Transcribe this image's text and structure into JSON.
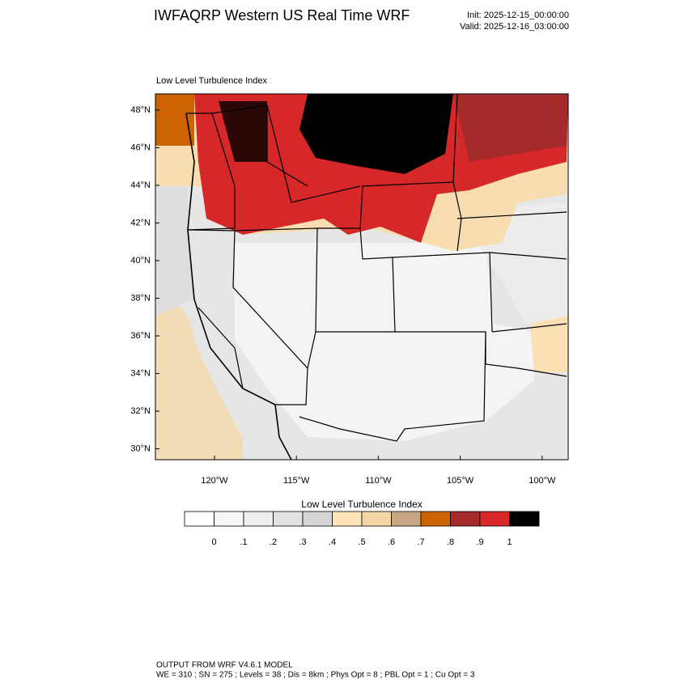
{
  "header": {
    "title": "IWFAQRP Western US Real Time WRF",
    "init": "Init: 2025-12-15_00:00:00",
    "valid": "Valid: 2025-12-16_03:00:00"
  },
  "map": {
    "title": "Low Level Turbulence Index",
    "lat_labels": [
      "48°N",
      "46°N",
      "44°N",
      "42°N",
      "40°N",
      "38°N",
      "36°N",
      "34°N",
      "32°N",
      "30°N"
    ],
    "lon_labels": [
      "120°W",
      "115°W",
      "110°W",
      "105°W",
      "100°W"
    ]
  },
  "colorbar": {
    "title": "Low Level Turbulence Index",
    "colors": [
      "#ffffff",
      "#f7f7f7",
      "#eeeeee",
      "#e2e2e2",
      "#d6d6d6",
      "#ffe4b8",
      "#f5d5a6",
      "#c9a784",
      "#cc6200",
      "#a52a2a",
      "#d62828",
      "#000000"
    ],
    "labels": [
      "0",
      ".1",
      ".2",
      ".3",
      ".4",
      ".5",
      ".6",
      ".7",
      ".8",
      ".9",
      "1"
    ]
  },
  "footer": {
    "line1": "OUTPUT FROM WRF V4.6.1 MODEL",
    "line2": "WE = 310 ; SN = 275 ; Levels = 38 ; Dis = 8km ; Phys Opt = 8 ; PBL Opt = 1 ; Cu Opt = 3"
  }
}
